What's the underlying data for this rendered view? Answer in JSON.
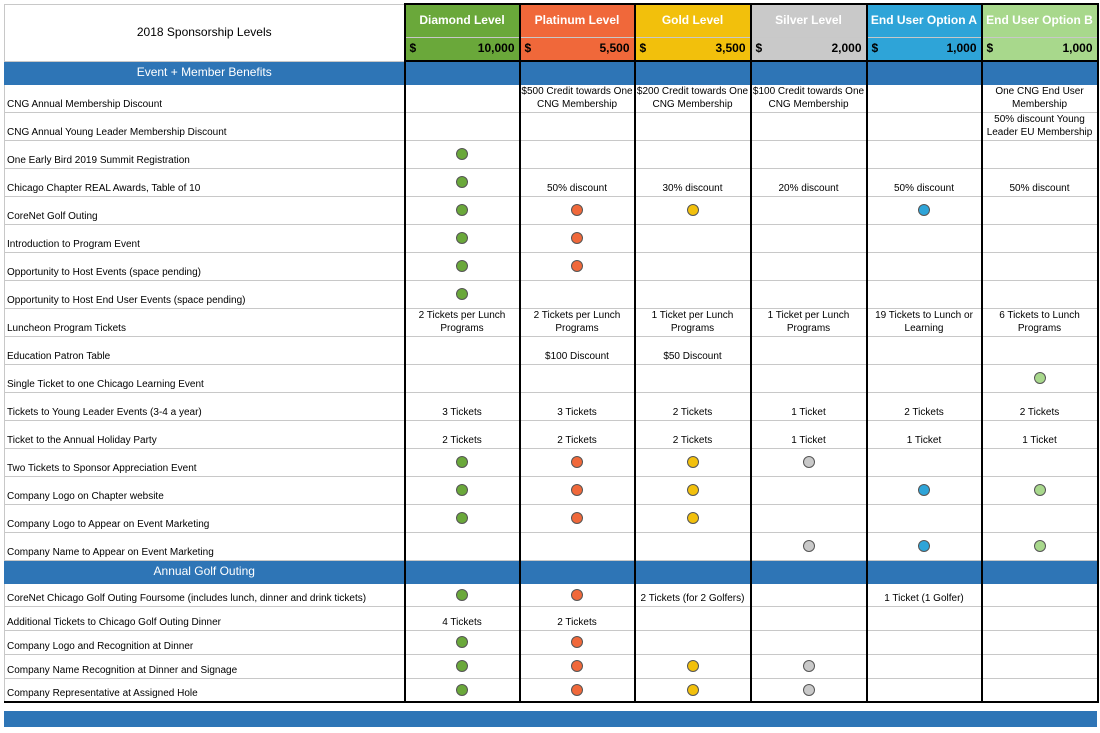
{
  "title": "2018 Sponsorship Levels",
  "colors": {
    "section": "#2e75b6",
    "diamond": "#6aa83a",
    "platinum": "#f0683a",
    "gold": "#f2c00c",
    "silver": "#c9c9c9",
    "option_a": "#2ea4d8",
    "option_b": "#a8d88c"
  },
  "levels": [
    {
      "name": "Diamond Level",
      "currency": "$",
      "price": "10,000",
      "color": "#6aa83a",
      "dot": "c-diamond"
    },
    {
      "name": "Platinum Level",
      "currency": "$",
      "price": "5,500",
      "color": "#f0683a",
      "dot": "c-platinum"
    },
    {
      "name": "Gold Level",
      "currency": "$",
      "price": "3,500",
      "color": "#f2c00c",
      "dot": "c-gold"
    },
    {
      "name": "Silver Level",
      "currency": "$",
      "price": "2,000",
      "color": "#c9c9c9",
      "dot": "c-silver"
    },
    {
      "name": "End User Option A",
      "currency": "$",
      "price": "1,000",
      "color": "#2ea4d8",
      "dot": "c-a"
    },
    {
      "name": "End User Option B",
      "currency": "$",
      "price": "1,000",
      "color": "#a8d88c",
      "dot": "c-b"
    }
  ],
  "sections": [
    {
      "title": "Event + Member Benefits",
      "rows": [
        {
          "label": "CNG Annual Membership Discount",
          "cells": [
            "",
            "$500 Credit towards One CNG Membership",
            "$200 Credit towards One CNG Membership",
            "$100 Credit towards One CNG Membership",
            "",
            "One CNG End User Membership"
          ]
        },
        {
          "label": "CNG Annual Young Leader Membership Discount",
          "cells": [
            "",
            "",
            "",
            "",
            "",
            "50% discount Young Leader EU Membership"
          ]
        },
        {
          "label": "One Early Bird 2019 Summit Registration",
          "cells": [
            "dot",
            "",
            "",
            "",
            "",
            ""
          ]
        },
        {
          "label": "Chicago Chapter REAL Awards, Table of 10",
          "cells": [
            "dot",
            "50% discount",
            "30% discount",
            "20% discount",
            "50% discount",
            "50% discount"
          ]
        },
        {
          "label": "CoreNet Golf Outing",
          "cells": [
            "dot",
            "dot",
            "dot",
            "",
            "dot",
            ""
          ]
        },
        {
          "label": "Introduction to Program Event",
          "cells": [
            "dot",
            "dot",
            "",
            "",
            "",
            ""
          ]
        },
        {
          "label": "Opportunity to Host Events (space pending)",
          "cells": [
            "dot",
            "dot",
            "",
            "",
            "",
            ""
          ]
        },
        {
          "label": "Opportunity to Host End User Events (space pending)",
          "cells": [
            "dot",
            "",
            "",
            "",
            "",
            ""
          ]
        },
        {
          "label": "Luncheon Program Tickets",
          "cells": [
            "2 Tickets per Lunch Programs",
            "2 Tickets per Lunch Programs",
            "1 Ticket per Lunch Programs",
            "1 Ticket per Lunch Programs",
            "19 Tickets to Lunch or Learning",
            "6 Tickets to Lunch Programs"
          ]
        },
        {
          "label": "Education Patron Table",
          "cells": [
            "",
            "$100 Discount",
            "$50 Discount",
            "",
            "",
            ""
          ]
        },
        {
          "label": "Single Ticket to one Chicago Learning Event",
          "cells": [
            "",
            "",
            "",
            "",
            "",
            "dot"
          ]
        },
        {
          "label": "Tickets to Young Leader Events (3-4 a year)",
          "cells": [
            "3 Tickets",
            "3 Tickets",
            "2 Tickets",
            "1 Ticket",
            "2 Tickets",
            "2 Tickets"
          ]
        },
        {
          "label": "Ticket to the Annual Holiday Party",
          "cells": [
            "2 Tickets",
            "2 Tickets",
            "2 Tickets",
            "1 Ticket",
            "1 Ticket",
            "1 Ticket"
          ]
        },
        {
          "label": "Two Tickets to Sponsor Appreciation Event",
          "cells": [
            "dot",
            "dot",
            "dot",
            "dot",
            "",
            ""
          ]
        },
        {
          "label": "Company Logo on Chapter website",
          "cells": [
            "dot",
            "dot",
            "dot",
            "",
            "dot",
            "dot"
          ]
        },
        {
          "label": "Company Logo to Appear on Event Marketing",
          "cells": [
            "dot",
            "dot",
            "dot",
            "",
            "",
            ""
          ]
        },
        {
          "label": "Company Name to Appear on Event Marketing",
          "cells": [
            "",
            "",
            "",
            "dot",
            "dot",
            "dot"
          ]
        }
      ]
    },
    {
      "title": "Annual Golf Outing",
      "rows": [
        {
          "label": "CoreNet Chicago Golf Outing Foursome (includes lunch, dinner and drink tickets)",
          "cells": [
            "dot",
            "dot",
            "2 Tickets (for 2 Golfers)",
            "",
            "1 Ticket (1 Golfer)",
            ""
          ]
        },
        {
          "label": "Additional Tickets to Chicago Golf Outing Dinner",
          "cells": [
            "4 Tickets",
            "2 Tickets",
            "",
            "",
            "",
            ""
          ]
        },
        {
          "label": "Company Logo and Recognition at Dinner",
          "cells": [
            "dot",
            "dot",
            "",
            "",
            "",
            ""
          ]
        },
        {
          "label": "Company Name Recognition at Dinner and Signage",
          "cells": [
            "dot",
            "dot",
            "dot",
            "dot",
            "",
            ""
          ]
        },
        {
          "label": "Company Representative at Assigned Hole",
          "cells": [
            "dot",
            "dot",
            "dot",
            "dot",
            "",
            ""
          ]
        }
      ]
    }
  ]
}
